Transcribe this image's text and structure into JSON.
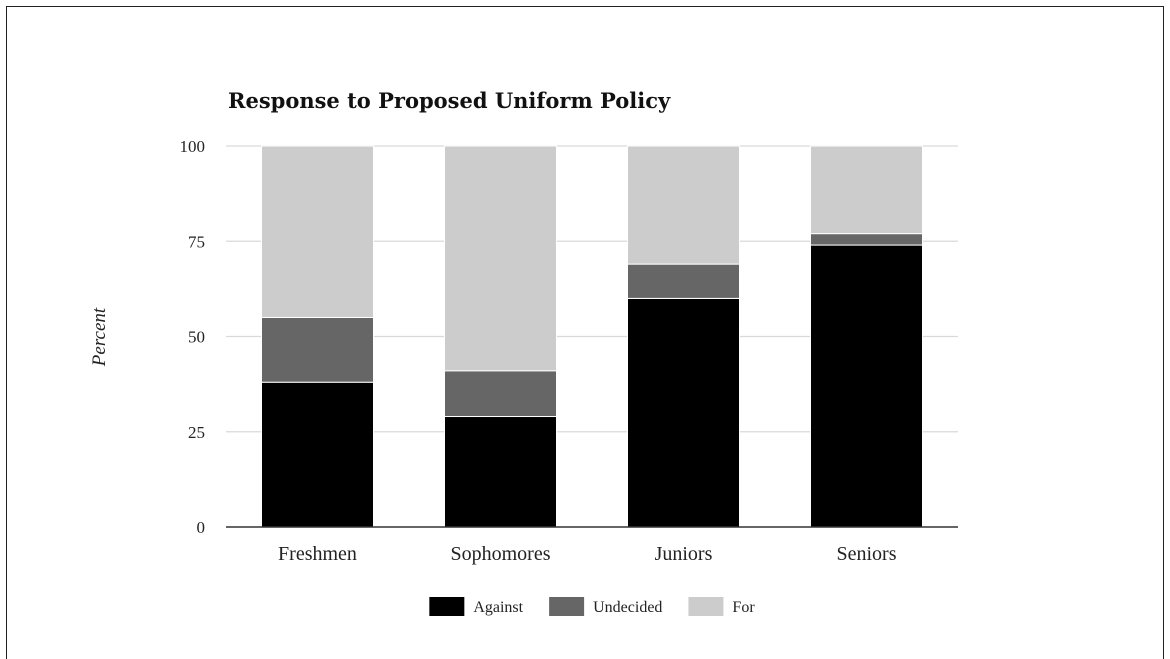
{
  "chart_data": {
    "type": "bar",
    "stacked": true,
    "title": "Response to Proposed Uniform Policy",
    "xlabel": "",
    "ylabel": "Percent",
    "ylim": [
      0,
      100
    ],
    "yticks": [
      0,
      25,
      50,
      75,
      100
    ],
    "ytick_labels": [
      "0",
      "25",
      "50",
      "75",
      "100"
    ],
    "grid": true,
    "legend_position": "bottom",
    "categories": [
      "Freshmen",
      "Sophomores",
      "Juniors",
      "Seniors"
    ],
    "series": [
      {
        "name": "Against",
        "color": "#000000",
        "values": [
          38,
          29,
          60,
          74
        ]
      },
      {
        "name": "Undecided",
        "color": "#666666",
        "values": [
          17,
          12,
          9,
          3
        ]
      },
      {
        "name": "For",
        "color": "#cccccc",
        "values": [
          45,
          59,
          31,
          23
        ]
      }
    ]
  }
}
